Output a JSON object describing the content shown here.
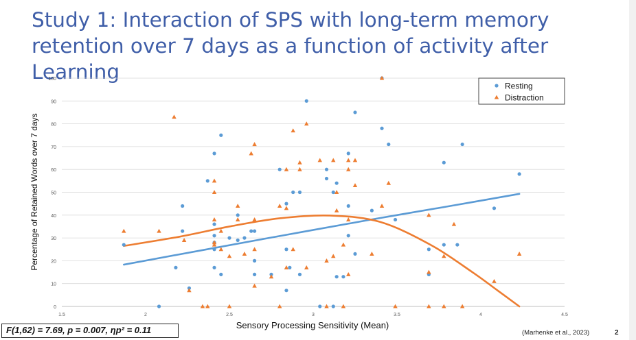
{
  "slide": {
    "title_line1": "Study 1: Interaction of SPS with long-term memory",
    "title_line2": "retention over 7 days as a function of activity after Learning",
    "stats": "F(1,62) = 7.69, p = 0.007, ηp² = 0.11",
    "citation": "(Marhenke et al., 2023)",
    "page_number": "2"
  },
  "chart_data": {
    "type": "scatter",
    "xlabel": "Sensory Processing Sensitivity (Mean)",
    "ylabel": "Percentage of Retained Words over 7 days",
    "xlim": [
      1.5,
      4.5
    ],
    "ylim": [
      0,
      100
    ],
    "xticks": [
      1.5,
      2,
      2.5,
      3,
      3.5,
      4,
      4.5
    ],
    "xtick_labels": [
      "1.5",
      "2",
      "2.5",
      "3",
      "3.5",
      "4",
      "4.5"
    ],
    "yticks": [
      0,
      10,
      20,
      30,
      40,
      50,
      60,
      70,
      80,
      90,
      100
    ],
    "ytick_labels": [
      "0",
      "10",
      "20",
      "30",
      "40",
      "50",
      "60",
      "70",
      "80",
      "90",
      "100"
    ],
    "grid": "horizontal",
    "legend_position": "top-right",
    "series": [
      {
        "name": "Resting",
        "marker": "circle",
        "color": "#5b9bd5",
        "trendline": "linear",
        "trendline_color": "#5b9bd5",
        "points": [
          [
            1.87,
            27
          ],
          [
            2.08,
            0
          ],
          [
            2.18,
            17
          ],
          [
            2.22,
            33
          ],
          [
            2.22,
            44
          ],
          [
            2.26,
            8
          ],
          [
            2.37,
            55
          ],
          [
            2.41,
            67
          ],
          [
            2.41,
            36
          ],
          [
            2.41,
            31
          ],
          [
            2.41,
            28
          ],
          [
            2.41,
            25
          ],
          [
            2.41,
            17
          ],
          [
            2.45,
            75
          ],
          [
            2.45,
            14
          ],
          [
            2.5,
            30
          ],
          [
            2.55,
            40
          ],
          [
            2.55,
            29
          ],
          [
            2.59,
            30
          ],
          [
            2.63,
            33
          ],
          [
            2.65,
            33
          ],
          [
            2.65,
            20
          ],
          [
            2.65,
            14
          ],
          [
            2.75,
            14
          ],
          [
            2.8,
            60
          ],
          [
            2.84,
            45
          ],
          [
            2.84,
            25
          ],
          [
            2.84,
            7
          ],
          [
            2.86,
            17
          ],
          [
            2.88,
            50
          ],
          [
            2.92,
            50
          ],
          [
            2.92,
            14
          ],
          [
            2.96,
            90
          ],
          [
            3.04,
            0
          ],
          [
            3.08,
            60
          ],
          [
            3.08,
            56
          ],
          [
            3.12,
            50
          ],
          [
            3.12,
            0
          ],
          [
            3.14,
            54
          ],
          [
            3.14,
            13
          ],
          [
            3.18,
            13
          ],
          [
            3.21,
            67
          ],
          [
            3.21,
            44
          ],
          [
            3.21,
            31
          ],
          [
            3.25,
            85
          ],
          [
            3.25,
            23
          ],
          [
            3.35,
            42
          ],
          [
            3.41,
            100
          ],
          [
            3.41,
            78
          ],
          [
            3.45,
            71
          ],
          [
            3.49,
            38
          ],
          [
            3.69,
            25
          ],
          [
            3.69,
            14
          ],
          [
            3.78,
            63
          ],
          [
            3.78,
            27
          ],
          [
            3.86,
            27
          ],
          [
            3.89,
            71
          ],
          [
            4.08,
            43
          ],
          [
            4.23,
            58
          ]
        ]
      },
      {
        "name": "Distraction",
        "marker": "triangle",
        "color": "#ed7d31",
        "trendline": "polynomial",
        "trendline_color": "#ed7d31",
        "points": [
          [
            1.87,
            33
          ],
          [
            2.08,
            33
          ],
          [
            2.17,
            83
          ],
          [
            2.23,
            29
          ],
          [
            2.26,
            7
          ],
          [
            2.34,
            0
          ],
          [
            2.37,
            0
          ],
          [
            2.41,
            55
          ],
          [
            2.41,
            50
          ],
          [
            2.41,
            38
          ],
          [
            2.41,
            28
          ],
          [
            2.41,
            27
          ],
          [
            2.45,
            33
          ],
          [
            2.45,
            25
          ],
          [
            2.5,
            22
          ],
          [
            2.5,
            0
          ],
          [
            2.55,
            44
          ],
          [
            2.55,
            38
          ],
          [
            2.59,
            23
          ],
          [
            2.63,
            67
          ],
          [
            2.65,
            71
          ],
          [
            2.65,
            38
          ],
          [
            2.65,
            25
          ],
          [
            2.65,
            9
          ],
          [
            2.75,
            13
          ],
          [
            2.8,
            44
          ],
          [
            2.8,
            0
          ],
          [
            2.84,
            60
          ],
          [
            2.84,
            43
          ],
          [
            2.84,
            17
          ],
          [
            2.88,
            77
          ],
          [
            2.88,
            25
          ],
          [
            2.92,
            63
          ],
          [
            2.92,
            60
          ],
          [
            2.96,
            80
          ],
          [
            2.96,
            17
          ],
          [
            3.04,
            64
          ],
          [
            3.08,
            20
          ],
          [
            3.08,
            0
          ],
          [
            3.12,
            64
          ],
          [
            3.12,
            22
          ],
          [
            3.14,
            50
          ],
          [
            3.14,
            42
          ],
          [
            3.18,
            27
          ],
          [
            3.18,
            0
          ],
          [
            3.21,
            64
          ],
          [
            3.21,
            60
          ],
          [
            3.21,
            38
          ],
          [
            3.21,
            14
          ],
          [
            3.25,
            64
          ],
          [
            3.25,
            53
          ],
          [
            3.35,
            23
          ],
          [
            3.41,
            100
          ],
          [
            3.41,
            44
          ],
          [
            3.45,
            54
          ],
          [
            3.49,
            0
          ],
          [
            3.69,
            40
          ],
          [
            3.69,
            15
          ],
          [
            3.69,
            0
          ],
          [
            3.78,
            22
          ],
          [
            3.78,
            0
          ],
          [
            3.84,
            36
          ],
          [
            3.89,
            0
          ],
          [
            4.08,
            11
          ],
          [
            4.23,
            23
          ]
        ]
      }
    ],
    "trend_curves": [
      {
        "series": "Resting",
        "x": [
          1.87,
          2.35,
          2.85,
          3.35,
          3.85,
          4.23
        ],
        "y": [
          18.3,
          24.8,
          31.5,
          38.1,
          44.4,
          49.3
        ]
      },
      {
        "series": "Distraction",
        "x": [
          1.87,
          2.2,
          2.5,
          2.8,
          3.1,
          3.4,
          3.7,
          3.95,
          4.1,
          4.23
        ],
        "y": [
          26.5,
          30.5,
          35,
          38.6,
          39.8,
          37,
          27,
          15,
          7,
          0
        ]
      }
    ]
  }
}
